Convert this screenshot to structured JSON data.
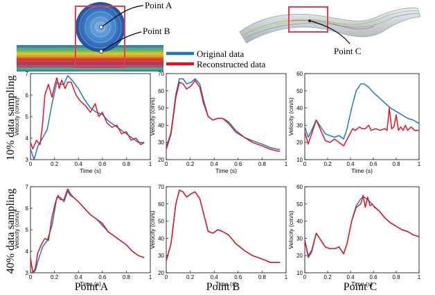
{
  "figure": {
    "row_labels": [
      "10% data sampling",
      "40% data sampling"
    ],
    "column_labels": [
      "Point A",
      "Point B",
      "Point C"
    ],
    "illustration": {
      "point_labels": [
        "Point A",
        "Point B",
        "Point C"
      ],
      "legend": [
        {
          "name": "Original data",
          "color": "#1f77c4"
        },
        {
          "name": "Reconstructed data",
          "color": "#e0141e"
        }
      ]
    }
  },
  "chart_data": [
    {
      "type": "line",
      "panel": "10% data sampling / Point A",
      "xlabel": "Time (s)",
      "ylabel": "Velocity (cm/s)",
      "xlim": [
        0,
        1
      ],
      "ylim": [
        3,
        7
      ],
      "xticks": [
        0,
        0.2,
        0.4,
        0.6,
        0.8,
        1
      ],
      "yticks": [
        3,
        4,
        5,
        6,
        7
      ],
      "series": [
        {
          "name": "Original data",
          "color": "#1f77c4",
          "x": [
            0,
            0.03,
            0.06,
            0.1,
            0.14,
            0.18,
            0.22,
            0.25,
            0.28,
            0.31,
            0.33,
            0.36,
            0.4,
            0.45,
            0.5,
            0.55,
            0.6,
            0.65,
            0.7,
            0.75,
            0.8,
            0.85,
            0.9,
            0.95
          ],
          "values": [
            3.5,
            3.0,
            3.6,
            4.0,
            4.4,
            5.6,
            6.6,
            6.5,
            6.5,
            6.9,
            6.8,
            6.6,
            6.3,
            5.8,
            5.4,
            5.2,
            5.1,
            4.8,
            4.6,
            4.4,
            4.2,
            4.0,
            3.8,
            3.8
          ]
        },
        {
          "name": "Reconstructed data",
          "color": "#e0141e",
          "x": [
            0,
            0.02,
            0.05,
            0.08,
            0.1,
            0.12,
            0.15,
            0.18,
            0.2,
            0.22,
            0.24,
            0.26,
            0.29,
            0.31,
            0.34,
            0.38,
            0.42,
            0.46,
            0.5,
            0.54,
            0.57,
            0.6,
            0.64,
            0.68,
            0.72,
            0.76,
            0.8,
            0.84,
            0.88,
            0.92,
            0.95
          ],
          "values": [
            3.8,
            3.5,
            3.9,
            3.7,
            4.6,
            6.0,
            6.5,
            5.9,
            6.4,
            6.8,
            6.3,
            6.7,
            6.3,
            6.6,
            6.6,
            6.0,
            5.7,
            5.5,
            5.2,
            5.6,
            5.0,
            5.2,
            4.7,
            4.5,
            4.6,
            4.2,
            4.3,
            3.9,
            4.0,
            3.7,
            3.8
          ]
        }
      ]
    },
    {
      "type": "line",
      "panel": "10% data sampling / Point B",
      "xlabel": "Time (s)",
      "ylabel": "Velocity (cm/s)",
      "xlim": [
        0,
        1
      ],
      "ylim": [
        20,
        70
      ],
      "xticks": [
        0,
        0.2,
        0.4,
        0.6,
        0.8,
        1
      ],
      "yticks": [
        20,
        30,
        40,
        50,
        60,
        70
      ],
      "series": [
        {
          "name": "Original data",
          "color": "#1f77c4",
          "x": [
            0,
            0.04,
            0.08,
            0.11,
            0.14,
            0.17,
            0.21,
            0.24,
            0.28,
            0.31,
            0.35,
            0.39,
            0.43,
            0.47,
            0.52,
            0.58,
            0.65,
            0.72,
            0.8,
            0.87,
            0.93,
            0.95
          ],
          "values": [
            27,
            36,
            58,
            67,
            67,
            64,
            65,
            67,
            64,
            55,
            45,
            43,
            44,
            44,
            42,
            37,
            33,
            31,
            29,
            27,
            26,
            26
          ]
        },
        {
          "name": "Reconstructed data",
          "color": "#e0141e",
          "x": [
            0,
            0.04,
            0.08,
            0.11,
            0.14,
            0.17,
            0.21,
            0.24,
            0.28,
            0.31,
            0.35,
            0.39,
            0.43,
            0.47,
            0.52,
            0.58,
            0.65,
            0.72,
            0.8,
            0.87,
            0.93,
            0.95
          ],
          "values": [
            26,
            35,
            56,
            65,
            64,
            61,
            63,
            66,
            62,
            53,
            45,
            43,
            44,
            44,
            41,
            36,
            33,
            30,
            28,
            26,
            25,
            25
          ]
        }
      ]
    },
    {
      "type": "line",
      "panel": "10% data sampling / Point C",
      "xlabel": "Time (s)",
      "ylabel": "Velocity (cm/s)",
      "xlim": [
        0,
        1
      ],
      "ylim": [
        10,
        60
      ],
      "xticks": [
        0,
        0.2,
        0.4,
        0.6,
        0.8,
        1
      ],
      "yticks": [
        10,
        20,
        30,
        40,
        50,
        60
      ],
      "series": [
        {
          "name": "Original data",
          "color": "#1f77c4",
          "x": [
            0,
            0.03,
            0.06,
            0.1,
            0.14,
            0.18,
            0.22,
            0.26,
            0.3,
            0.34,
            0.37,
            0.41,
            0.45,
            0.49,
            0.52,
            0.56,
            0.6,
            0.65,
            0.7,
            0.75,
            0.8,
            0.85,
            0.9,
            0.95,
            1.0
          ],
          "values": [
            29,
            23,
            27,
            33,
            29,
            25,
            24,
            23,
            24,
            22,
            28,
            40,
            50,
            54,
            54,
            52,
            49,
            46,
            43,
            40,
            38,
            36,
            34,
            33,
            31
          ]
        },
        {
          "name": "Reconstructed data",
          "color": "#e0141e",
          "x": [
            0,
            0.03,
            0.06,
            0.1,
            0.14,
            0.18,
            0.22,
            0.26,
            0.3,
            0.34,
            0.38,
            0.42,
            0.44,
            0.48,
            0.5,
            0.53,
            0.56,
            0.58,
            0.62,
            0.66,
            0.7,
            0.72,
            0.74,
            0.76,
            0.78,
            0.8,
            0.82,
            0.84,
            0.86,
            0.88,
            0.9,
            0.93,
            0.96,
            1.0
          ],
          "values": [
            26,
            19,
            25,
            33,
            27,
            21,
            20,
            22,
            20,
            18,
            23,
            28,
            27,
            29,
            28,
            28,
            30,
            27,
            28,
            27,
            28,
            27,
            40,
            28,
            29,
            36,
            27,
            29,
            27,
            30,
            27,
            29,
            27,
            27
          ]
        }
      ]
    },
    {
      "type": "line",
      "panel": "40% data sampling / Point A",
      "xlabel": "Time (s)",
      "ylabel": "Velocity (cm/s)",
      "xlim": [
        0,
        1
      ],
      "ylim": [
        3,
        7
      ],
      "xticks": [
        0,
        0.2,
        0.4,
        0.6,
        0.8,
        1
      ],
      "yticks": [
        3,
        4,
        5,
        6,
        7
      ],
      "series": [
        {
          "name": "Original data",
          "color": "#1f77c4",
          "x": [
            0,
            0.02,
            0.04,
            0.06,
            0.1,
            0.14,
            0.18,
            0.22,
            0.25,
            0.28,
            0.31,
            0.33,
            0.36,
            0.4,
            0.45,
            0.5,
            0.55,
            0.6,
            0.65,
            0.7,
            0.75,
            0.8,
            0.85,
            0.9,
            0.95
          ],
          "values": [
            3.6,
            3.0,
            3.1,
            3.5,
            4.2,
            4.5,
            5.2,
            6.5,
            6.5,
            6.3,
            6.8,
            6.6,
            6.5,
            6.3,
            6.0,
            5.7,
            5.5,
            5.2,
            4.9,
            4.7,
            4.5,
            4.3,
            4.0,
            3.8,
            3.7
          ]
        },
        {
          "name": "Reconstructed data",
          "color": "#e0141e",
          "x": [
            0,
            0.02,
            0.04,
            0.06,
            0.09,
            0.12,
            0.15,
            0.18,
            0.21,
            0.23,
            0.25,
            0.28,
            0.31,
            0.33,
            0.36,
            0.4,
            0.45,
            0.5,
            0.55,
            0.6,
            0.65,
            0.7,
            0.75,
            0.8,
            0.85,
            0.9,
            0.95
          ],
          "values": [
            3.7,
            3.0,
            3.2,
            3.9,
            4.3,
            4.6,
            4.5,
            5.6,
            6.3,
            6.6,
            6.4,
            6.4,
            6.9,
            6.7,
            6.5,
            6.3,
            6.0,
            5.7,
            5.5,
            5.3,
            4.9,
            4.7,
            4.5,
            4.3,
            4.0,
            3.8,
            3.7
          ]
        }
      ]
    },
    {
      "type": "line",
      "panel": "40% data sampling / Point B",
      "xlabel": "Time (s)",
      "ylabel": "Velocity (cm/s)",
      "xlim": [
        0,
        1
      ],
      "ylim": [
        20,
        70
      ],
      "xticks": [
        0,
        0.2,
        0.4,
        0.6,
        0.8,
        1
      ],
      "yticks": [
        20,
        30,
        40,
        50,
        60,
        70
      ],
      "series": [
        {
          "name": "Original data",
          "color": "#1f77c4",
          "x": [
            0,
            0.04,
            0.08,
            0.11,
            0.14,
            0.17,
            0.21,
            0.24,
            0.28,
            0.31,
            0.35,
            0.39,
            0.43,
            0.47,
            0.52,
            0.58,
            0.65,
            0.72,
            0.8,
            0.87,
            0.93,
            0.95
          ],
          "values": [
            27,
            37,
            60,
            68,
            67,
            64,
            66,
            67,
            63,
            55,
            44,
            43,
            45,
            44,
            42,
            37,
            33,
            30,
            28,
            26,
            26,
            26
          ]
        },
        {
          "name": "Reconstructed data",
          "color": "#e0141e",
          "x": [
            0,
            0.04,
            0.08,
            0.11,
            0.14,
            0.17,
            0.21,
            0.24,
            0.28,
            0.31,
            0.35,
            0.39,
            0.43,
            0.47,
            0.52,
            0.58,
            0.65,
            0.72,
            0.8,
            0.87,
            0.93,
            0.95
          ],
          "values": [
            27,
            37,
            60,
            68,
            67,
            64,
            66,
            67,
            63,
            55,
            44,
            43,
            45,
            44,
            42,
            37,
            33,
            30,
            28,
            26,
            26,
            26
          ]
        }
      ]
    },
    {
      "type": "line",
      "panel": "40% data sampling / Point C",
      "xlabel": "Time (s)",
      "ylabel": "Velocity (cm/s)",
      "xlim": [
        0,
        1
      ],
      "ylim": [
        10,
        60
      ],
      "xticks": [
        0,
        0.2,
        0.4,
        0.6,
        0.8,
        1
      ],
      "yticks": [
        10,
        20,
        30,
        40,
        50,
        60
      ],
      "series": [
        {
          "name": "Original data",
          "color": "#1f77c4",
          "x": [
            0,
            0.03,
            0.06,
            0.1,
            0.14,
            0.18,
            0.22,
            0.26,
            0.3,
            0.34,
            0.37,
            0.41,
            0.45,
            0.49,
            0.52,
            0.56,
            0.6,
            0.65,
            0.7,
            0.75,
            0.8,
            0.85,
            0.9,
            0.95,
            1.0
          ],
          "values": [
            29,
            20,
            23,
            33,
            29,
            25,
            24,
            24,
            25,
            21,
            27,
            40,
            49,
            53,
            54,
            52,
            49,
            46,
            42,
            39,
            37,
            35,
            34,
            32,
            31
          ]
        },
        {
          "name": "Reconstructed data",
          "color": "#e0141e",
          "x": [
            0,
            0.03,
            0.06,
            0.1,
            0.14,
            0.18,
            0.22,
            0.26,
            0.3,
            0.34,
            0.37,
            0.41,
            0.45,
            0.49,
            0.51,
            0.53,
            0.55,
            0.57,
            0.59,
            0.61,
            0.65,
            0.7,
            0.75,
            0.8,
            0.85,
            0.9,
            0.95,
            1.0
          ],
          "values": [
            29,
            19,
            22,
            33,
            29,
            25,
            24,
            24,
            25,
            21,
            27,
            40,
            48,
            50,
            55,
            48,
            54,
            49,
            50,
            48,
            46,
            42,
            39,
            37,
            35,
            34,
            32,
            31
          ]
        }
      ]
    }
  ]
}
